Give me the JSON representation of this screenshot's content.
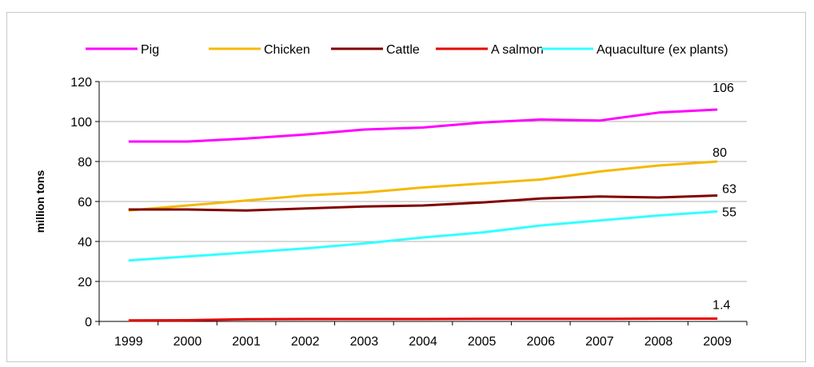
{
  "chart_data": {
    "type": "line",
    "title": "",
    "xlabel": "",
    "ylabel": "million tons",
    "ylim": [
      0,
      120
    ],
    "yticks": [
      0,
      20,
      40,
      60,
      80,
      100,
      120
    ],
    "categories": [
      "1999",
      "2000",
      "2001",
      "2002",
      "2003",
      "2004",
      "2005",
      "2006",
      "2007",
      "2008",
      "2009"
    ],
    "grid": "horizontal",
    "legend_position": "top",
    "series": [
      {
        "name": "Pig",
        "color": "#ff00ff",
        "values": [
          90,
          90,
          91.5,
          93.5,
          96,
          97,
          99.5,
          101,
          100.5,
          104.5,
          106
        ],
        "end_label": "106"
      },
      {
        "name": "Chicken",
        "color": "#f5b800",
        "values": [
          55.5,
          58,
          60.5,
          63,
          64.5,
          67,
          69,
          71,
          75,
          78,
          80
        ],
        "end_label": "80"
      },
      {
        "name": "Cattle",
        "color": "#800000",
        "values": [
          56,
          56,
          55.5,
          56.5,
          57.5,
          58,
          59.5,
          61.5,
          62.5,
          62,
          63
        ],
        "end_label": "63"
      },
      {
        "name": "A salmon",
        "color": "#e60000",
        "values": [
          0.5,
          0.6,
          1.1,
          1.2,
          1.2,
          1.2,
          1.3,
          1.3,
          1.3,
          1.4,
          1.4
        ],
        "end_label": "1.4"
      },
      {
        "name": "Aquaculture (ex plants)",
        "color": "#33ffff",
        "values": [
          30.5,
          32.5,
          34.5,
          36.5,
          39,
          42,
          44.5,
          48,
          50.5,
          53,
          55
        ],
        "end_label": "55"
      }
    ]
  }
}
